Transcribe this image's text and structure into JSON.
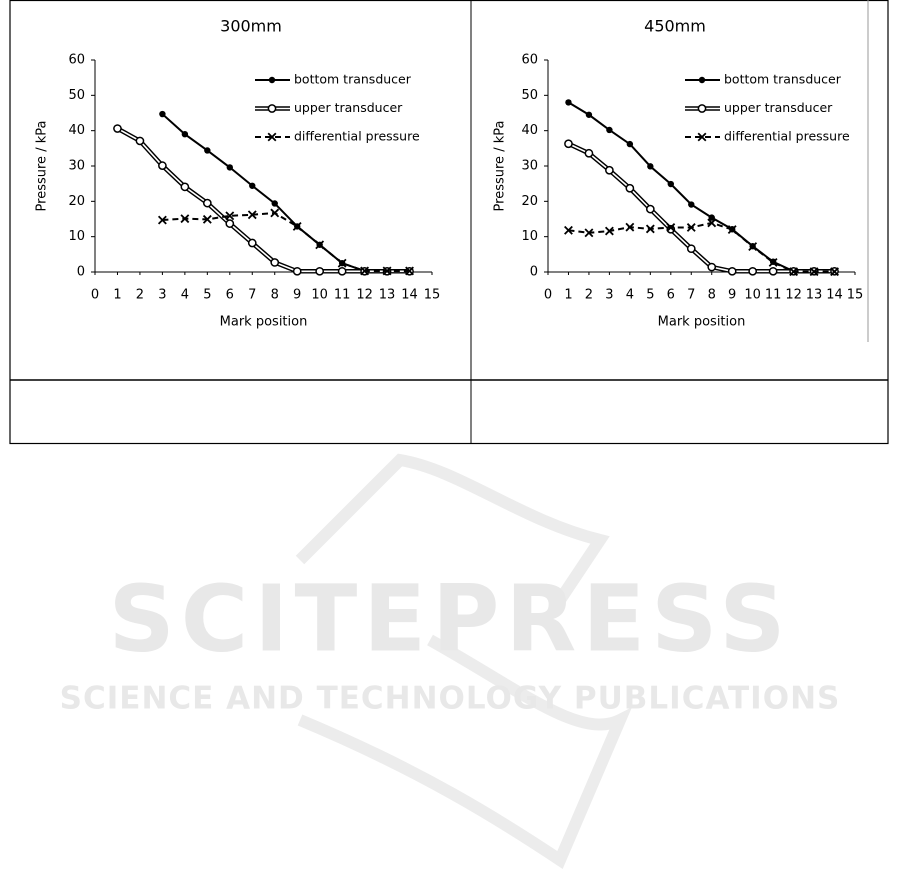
{
  "chart_data": [
    {
      "type": "line",
      "title": "300mm",
      "xlabel": "Mark position",
      "ylabel": "Pressure / kPa",
      "xlim": [
        0,
        15
      ],
      "xticks": [
        0,
        1,
        2,
        3,
        4,
        5,
        6,
        7,
        8,
        9,
        10,
        11,
        12,
        13,
        14,
        15
      ],
      "ylim": [
        0,
        60
      ],
      "yticks": [
        0,
        10,
        20,
        30,
        40,
        50,
        60
      ],
      "grid": false,
      "legend": "upper right",
      "series": [
        {
          "name": "bottom transducer",
          "color": "#000000",
          "style": "solid",
          "marker": "dot",
          "x": [
            3,
            4,
            5,
            6,
            7,
            8,
            9,
            10,
            11,
            12,
            13,
            14
          ],
          "values": [
            44.7,
            39,
            34.4,
            29.6,
            24.4,
            19.4,
            12.9,
            7.7,
            2.5,
            0.3,
            0.3,
            0.3
          ]
        },
        {
          "name": "upper transducer",
          "color": "#000000",
          "style": "double",
          "marker": "ring",
          "x": [
            1,
            2,
            3,
            4,
            5,
            6,
            7,
            8,
            9,
            10,
            11,
            12,
            13,
            14
          ],
          "values": [
            40.6,
            37.1,
            30.1,
            24.1,
            19.5,
            13.7,
            8.2,
            2.7,
            0.2,
            0.2,
            0.2,
            0.2,
            0.2,
            0.2
          ]
        },
        {
          "name": "differential pressure",
          "color": "#000000",
          "style": "dashed",
          "marker": "x",
          "x": [
            3,
            4,
            5,
            6,
            7,
            8,
            9,
            10,
            11,
            12,
            13,
            14
          ],
          "values": [
            14.7,
            15.1,
            14.9,
            15.9,
            16.2,
            16.7,
            12.9,
            7.7,
            2.5,
            0.3,
            0.3,
            0.3
          ]
        }
      ]
    },
    {
      "type": "line",
      "title": "450mm",
      "xlabel": "Mark position",
      "ylabel": "Pressure / kPa",
      "xlim": [
        0,
        15
      ],
      "xticks": [
        0,
        1,
        2,
        3,
        4,
        5,
        6,
        7,
        8,
        9,
        10,
        11,
        12,
        13,
        14,
        15
      ],
      "ylim": [
        0,
        60
      ],
      "yticks": [
        0,
        10,
        20,
        30,
        40,
        50,
        60
      ],
      "grid": false,
      "legend": "upper right",
      "series": [
        {
          "name": "bottom transducer",
          "color": "#000000",
          "style": "solid",
          "marker": "dot",
          "x": [
            1,
            2,
            3,
            4,
            5,
            6,
            7,
            8,
            9,
            10,
            11,
            12,
            13,
            14
          ],
          "values": [
            48,
            44.5,
            40.2,
            36.2,
            29.9,
            24.9,
            19.1,
            15.4,
            12.1,
            7.3,
            2.9,
            0.2,
            0.2,
            0.2
          ]
        },
        {
          "name": "upper transducer",
          "color": "#000000",
          "style": "double",
          "marker": "ring",
          "x": [
            1,
            2,
            3,
            4,
            5,
            6,
            7,
            8,
            9,
            10,
            11,
            12,
            13,
            14
          ],
          "values": [
            36.3,
            33.6,
            28.8,
            23.7,
            17.8,
            12.1,
            6.6,
            1.4,
            0.2,
            0.2,
            0.2,
            0.2,
            0.2,
            0.2
          ]
        },
        {
          "name": "differential pressure",
          "color": "#000000",
          "style": "dashed",
          "marker": "x",
          "x": [
            1,
            2,
            3,
            4,
            5,
            6,
            7,
            8,
            9,
            10,
            11,
            12,
            13,
            14
          ],
          "values": [
            11.8,
            11.1,
            11.6,
            12.7,
            12.2,
            12.6,
            12.6,
            13.9,
            12,
            7.2,
            2.7,
            0.1,
            0.1,
            0.1
          ]
        }
      ]
    }
  ],
  "watermark": {
    "title": "SCITEPRESS",
    "subtitle": "SCIENCE AND TECHNOLOGY PUBLICATIONS"
  }
}
